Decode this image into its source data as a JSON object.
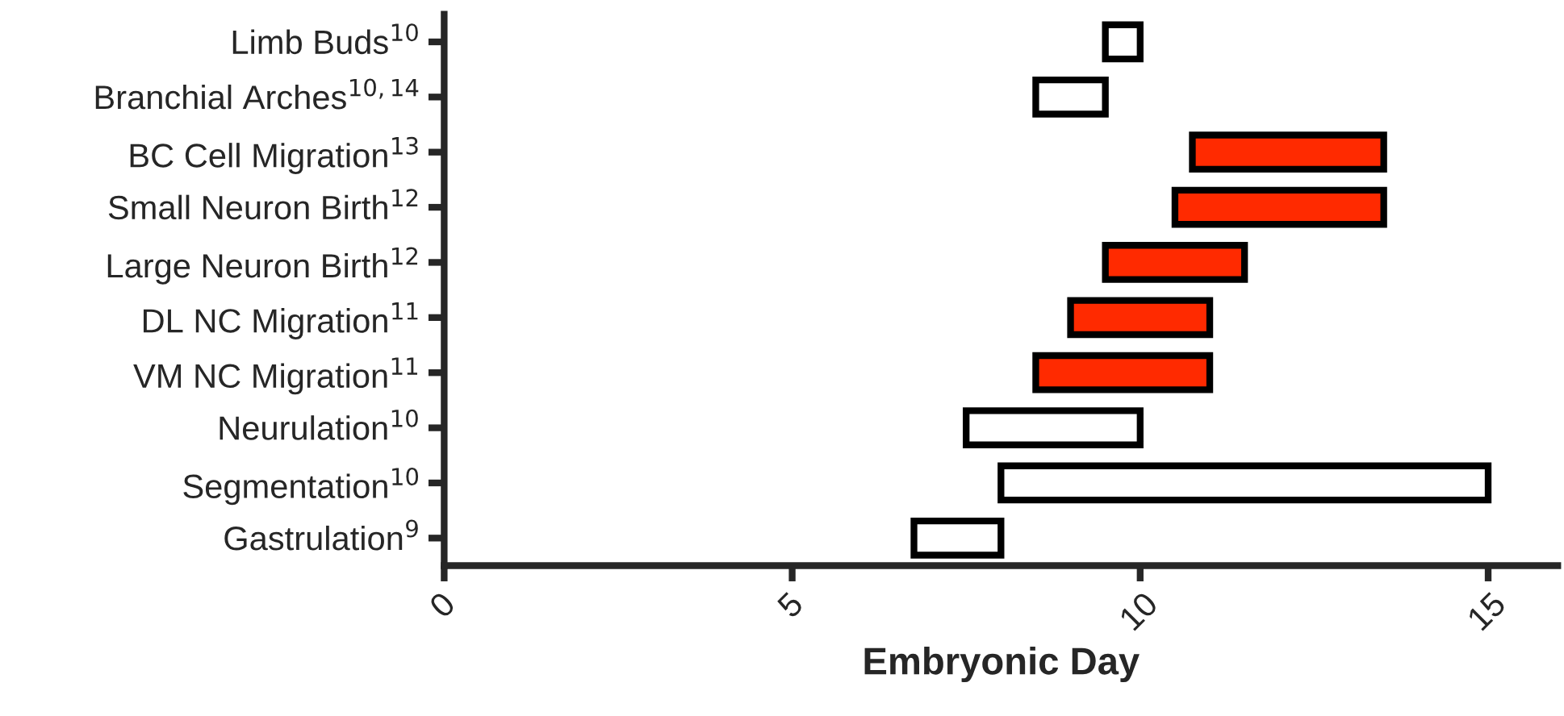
{
  "chart_data": {
    "type": "bar",
    "orientation": "horizontal",
    "xlabel": "Embryonic Day",
    "categories": [
      "Limb Buds$^{10}$",
      "Branchial Arches$^{10,14}$",
      "BC Cell Migration$^{13}$",
      "Small Neuron Birth$^{12}$",
      "Large Neuron Birth$^{12}$",
      "DL NC Migration$^{11}$",
      "VM NC Migration$^{11}$",
      "Neurulation$^{10}$",
      "Segmentation$^{10}$",
      "Gastrulation$^{9}$"
    ],
    "base": [
      9.5,
      8.5,
      10.75,
      10.5,
      9.5,
      9,
      8.5,
      7.5,
      8,
      6.75
    ],
    "values": [
      0.5,
      1,
      2.75,
      3,
      2,
      2,
      2.5,
      2.5,
      7,
      1.25
    ],
    "colors": [
      "#ffffff",
      "#ffffff",
      "#ff2a00",
      "#ff2a00",
      "#ff2a00",
      "#ff2a00",
      "#ff2a00",
      "#ffffff",
      "#ffffff",
      "#ffffff"
    ],
    "xlim": [
      0,
      16
    ],
    "xticks": [
      0,
      5,
      10,
      15
    ],
    "grid": false,
    "legend": false
  }
}
